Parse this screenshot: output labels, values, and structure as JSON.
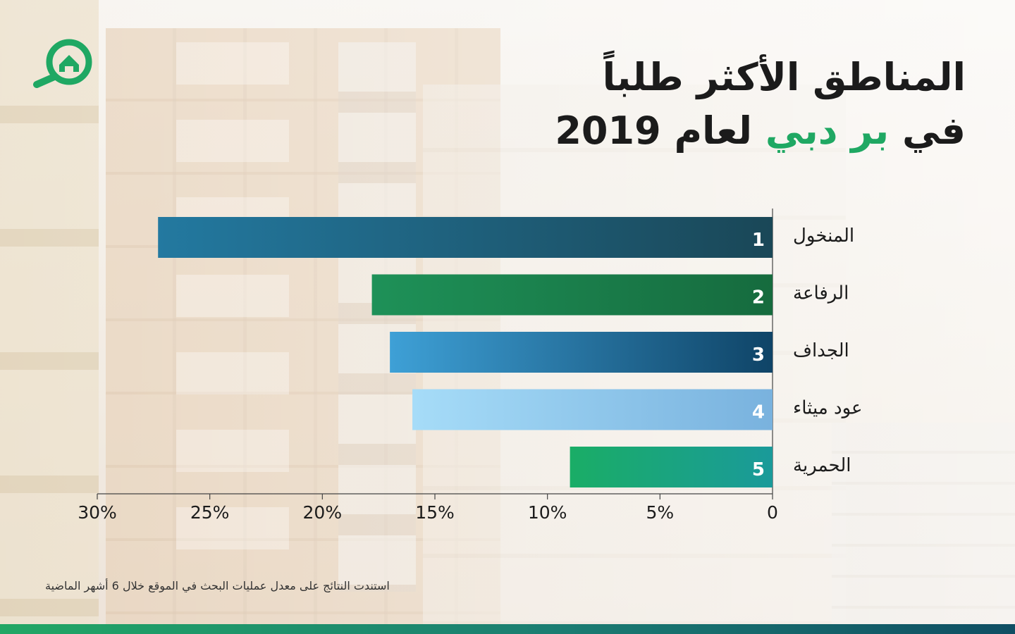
{
  "title": {
    "line1": "المناطق الأكثر طلباً",
    "line2_prefix": "في",
    "line2_highlight": "بر دبي",
    "line2_suffix": "لعام 2019"
  },
  "source_note": "استندت النتائج على معدل عمليات البحث في الموقع خلال 6 أشهر الماضية",
  "colors": {
    "highlight": "#1fa863",
    "footer_gradient": [
      "#22a765",
      "#1b7d72",
      "#0f4e63"
    ]
  },
  "logo": {
    "icon": "house-search-icon",
    "color": "#1fa863"
  },
  "chart_data": {
    "type": "bar",
    "orientation": "horizontal",
    "direction": "right-to-left",
    "categories": [
      "المنخول",
      "الرفاعة",
      "الجداف",
      "عود ميثاء",
      "الحمرية"
    ],
    "ranks": [
      "1",
      "2",
      "3",
      "4",
      "5"
    ],
    "values": [
      27.3,
      17.8,
      17.0,
      16.0,
      9.0
    ],
    "bar_colors": [
      [
        "#2379a0",
        "#1a4757"
      ],
      [
        "#1e9158",
        "#166b3e"
      ],
      [
        "#3ea0d6",
        "#0f4467"
      ],
      [
        "#a6dcf8",
        "#79b2de"
      ],
      [
        "#1aad66",
        "#1a9a9a"
      ]
    ],
    "xlim": [
      0,
      30
    ],
    "xticks": [
      0,
      5,
      10,
      15,
      20,
      25,
      30
    ],
    "xtick_labels": [
      "0",
      "5%",
      "10%",
      "15%",
      "20%",
      "25%",
      "30%"
    ],
    "grid": false
  }
}
